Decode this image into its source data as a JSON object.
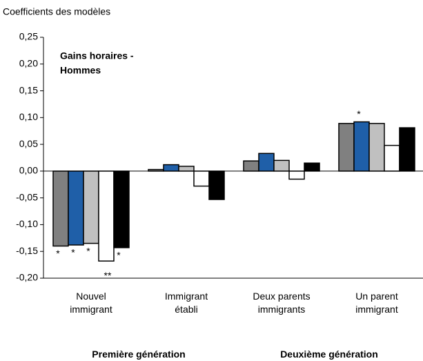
{
  "chart_data": {
    "type": "bar",
    "y_axis_label": "Coefficients  des modèles",
    "annotation_lines": [
      "Gains horaires -",
      "Hommes"
    ],
    "categories": [
      "Nouvel\nimmigrant",
      "Immigrant\nétabli",
      "Deux parents\nimmigrants",
      "Un parent\nimmigrant"
    ],
    "groups": [
      "Première génération",
      "Deuxième génération"
    ],
    "series": [
      {
        "color": "#808080",
        "values": [
          -0.14,
          0.003,
          0.019,
          0.089
        ],
        "significance": [
          "*",
          null,
          null,
          null
        ]
      },
      {
        "color": "#1f5fa8",
        "values": [
          -0.138,
          0.012,
          0.033,
          0.092
        ],
        "significance": [
          "*",
          null,
          null,
          "*"
        ]
      },
      {
        "color": "#c0c0c0",
        "values": [
          -0.135,
          0.009,
          0.02,
          0.089
        ],
        "significance": [
          "*",
          null,
          null,
          null
        ]
      },
      {
        "color": "#ffffff",
        "values": [
          -0.168,
          -0.028,
          -0.015,
          0.048
        ],
        "significance": [
          "**",
          null,
          null,
          null
        ]
      },
      {
        "color": "#000000",
        "values": [
          -0.143,
          -0.053,
          0.015,
          0.081
        ],
        "significance": [
          "*",
          null,
          null,
          null
        ]
      }
    ],
    "ylim": [
      -0.2,
      0.25
    ],
    "yticks": [
      {
        "value": -0.2,
        "label": "-0,20"
      },
      {
        "value": -0.15,
        "label": "-0,15"
      },
      {
        "value": -0.1,
        "label": "-0,10"
      },
      {
        "value": -0.05,
        "label": "-0,05"
      },
      {
        "value": 0,
        "label": "0,00"
      },
      {
        "value": 0.05,
        "label": "0,05"
      },
      {
        "value": 0.1,
        "label": "0,10"
      },
      {
        "value": 0.15,
        "label": "0,15"
      },
      {
        "value": 0.2,
        "label": "0,20"
      },
      {
        "value": 0.25,
        "label": "0,25"
      }
    ]
  }
}
